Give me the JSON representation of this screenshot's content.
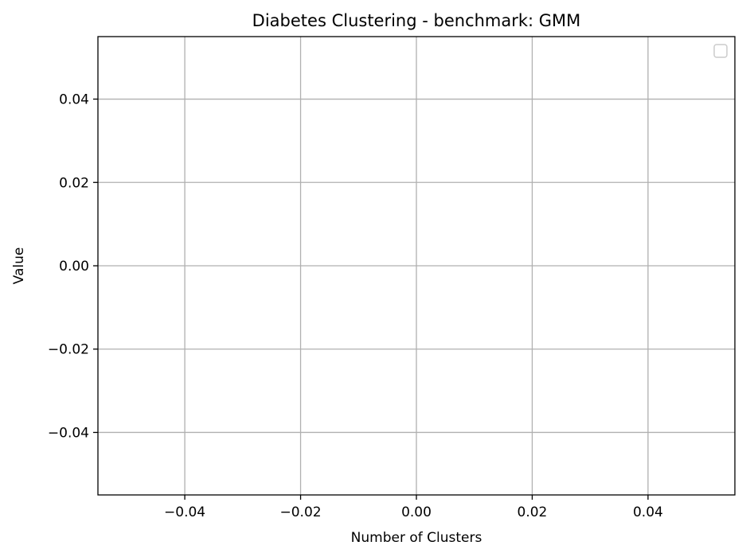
{
  "chart_data": {
    "type": "line",
    "title": "Diabetes Clustering - benchmark: GMM",
    "xlabel": "Number of Clusters",
    "ylabel": "Value",
    "xlim": [
      -0.055,
      0.055
    ],
    "ylim": [
      -0.055,
      0.055
    ],
    "xticks": [
      -0.04,
      -0.02,
      0.0,
      0.02,
      0.04
    ],
    "xtick_labels": [
      "−0.04",
      "−0.02",
      "0.00",
      "0.02",
      "0.04"
    ],
    "yticks": [
      0.04,
      0.02,
      0.0,
      -0.02,
      -0.04
    ],
    "ytick_labels": [
      "0.04",
      "0.02",
      "0.00",
      "−0.02",
      "−0.04"
    ],
    "grid": true,
    "legend": "top-right",
    "series": []
  },
  "colors": {
    "grid": "#b0b0b0",
    "axis": "#000000",
    "background": "#ffffff"
  }
}
